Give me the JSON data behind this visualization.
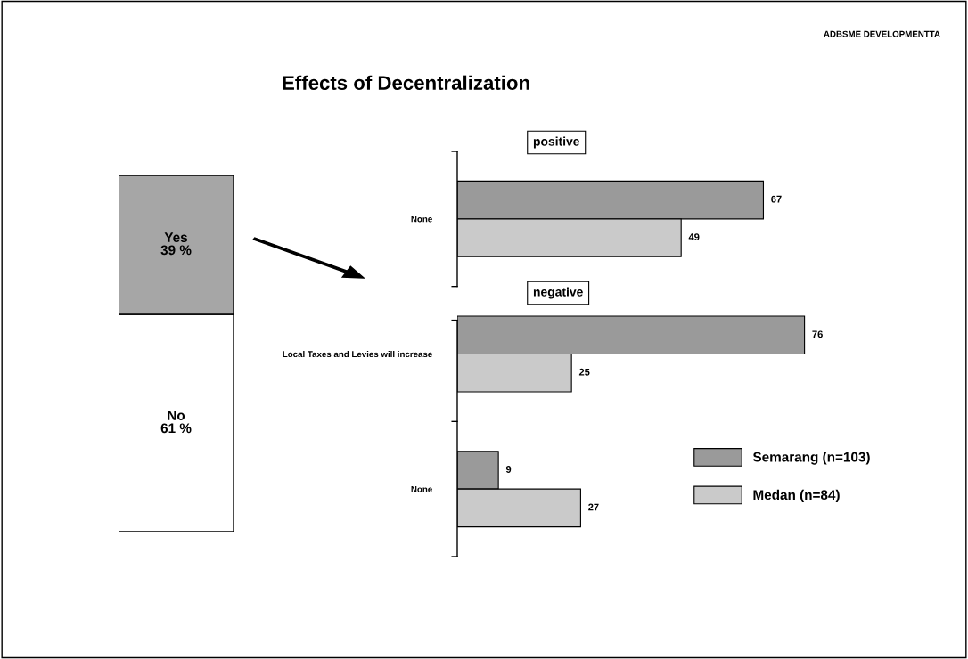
{
  "chart_data": [
    {
      "type": "bar",
      "stacked": true,
      "categories": [
        null
      ],
      "series": [
        {
          "name": "No",
          "color": "#ffffff",
          "values": [
            61
          ],
          "value_labels": [
            "61 %"
          ]
        },
        {
          "name": "Yes",
          "color": "#a6a6a6",
          "values": [
            39
          ],
          "value_labels": [
            "39 %"
          ]
        }
      ]
    },
    {
      "type": "bar",
      "orientation": "horizontal",
      "title": "Effects of Decentralization",
      "annotations": [
        "ADBSME DEVELOPMENTTA",
        "positive",
        "negative"
      ],
      "categories": [
        "None",
        "Local Taxes and Levies will increase",
        "None"
      ],
      "data_labels": true,
      "legend": "bottom right",
      "series": [
        {
          "name": "Semarang (n=103)",
          "color": "#9a9a9a",
          "values": [
            67,
            76,
            9
          ]
        },
        {
          "name": "Medan (n=84)",
          "color": "#cacaca",
          "values": [
            49,
            25,
            27
          ]
        }
      ]
    }
  ]
}
